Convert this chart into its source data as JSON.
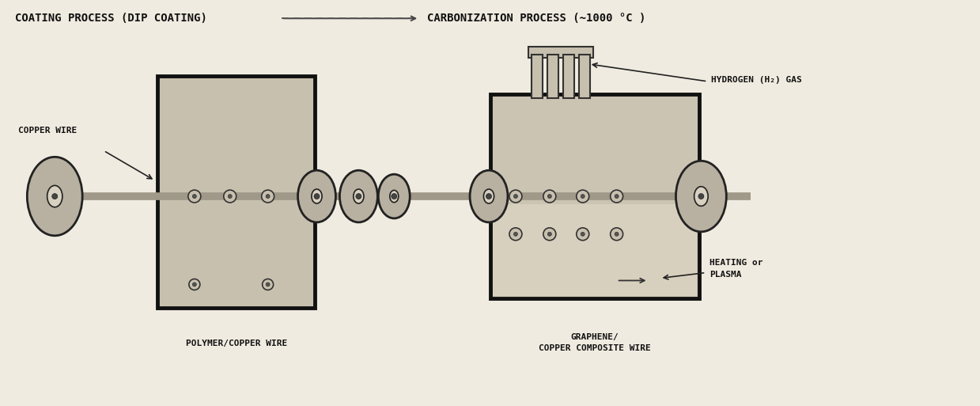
{
  "bg_color": "#f0ebe0",
  "title_left": "COATING PROCESS (DIP COATING)",
  "title_right": "CARBONIZATION PROCESS (~1000 °C )",
  "label_copper_wire": "COPPER WIRE",
  "label_polymer": "POLYMER/COPPER WIRE",
  "label_graphene": "GRAPHENE/\nCOPPER COMPOSITE WIRE",
  "label_hydrogen": "HYDROGEN (H₂) GAS",
  "label_heating": "HEATING or\nPLASMA",
  "box1_fc": "#c8c0ae",
  "box2_fc": "#ccc4b2",
  "box2_bottom_fc": "#d8d0be",
  "box_ec": "#111111",
  "belt_color": "#a09888",
  "roller_fc": "#b8b0a0",
  "roller_ec": "#222222",
  "pipe_fc": "#c8c0ae",
  "pipe_ec": "#333333",
  "text_color": "#111111",
  "font_size_title": 10,
  "font_size_label": 8,
  "font_size_small": 7.5
}
